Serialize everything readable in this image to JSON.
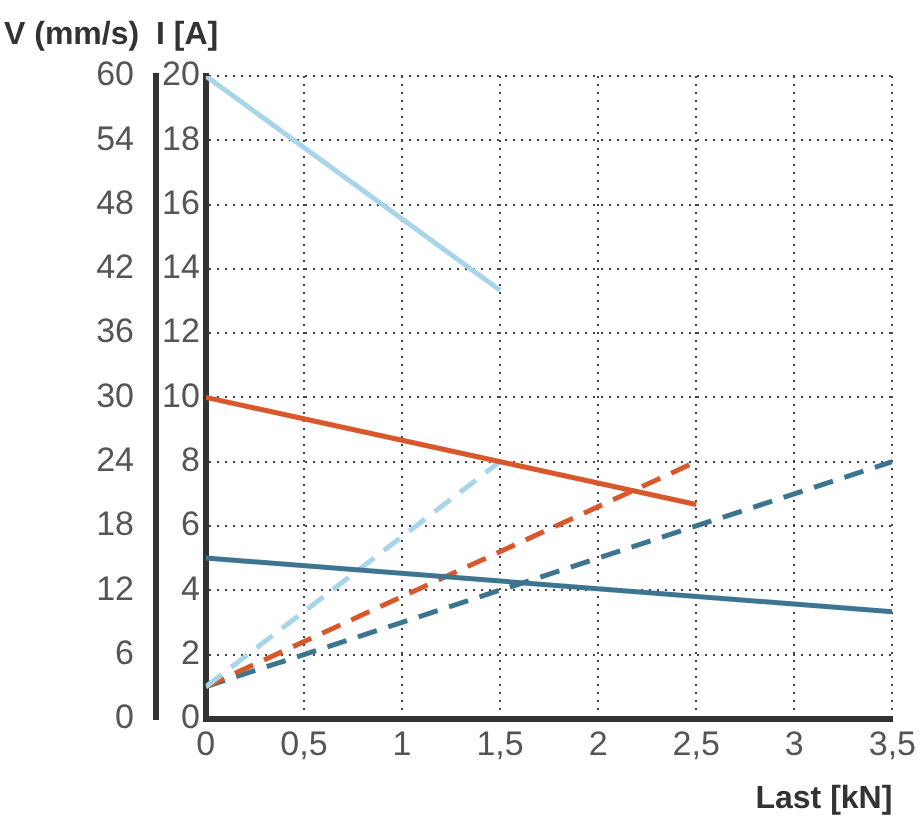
{
  "chart_data": {
    "type": "line",
    "ylabel": "V (mm/s)",
    "y2label": "I [A]",
    "xlabel": "Last [kN]",
    "xlim": [
      0,
      3.5
    ],
    "xticks": [
      0,
      {
        "value": 0.5,
        "label": "0,5"
      },
      1,
      {
        "value": 1.5,
        "label": "1,5"
      },
      2,
      {
        "value": 2.5,
        "label": "2,5"
      },
      3,
      {
        "value": 3.5,
        "label": "3,5"
      }
    ],
    "ylim": [
      0,
      60
    ],
    "yticks": [
      0,
      6,
      12,
      18,
      24,
      30,
      36,
      42,
      48,
      54,
      60
    ],
    "y2lim": [
      0,
      20
    ],
    "y2ticks": [
      0,
      2,
      4,
      6,
      8,
      10,
      12,
      14,
      16,
      18,
      20
    ],
    "grid": true,
    "marker": "none",
    "series": [
      {
        "color": "#a8d5ea",
        "x": [
          0,
          1.5
        ],
        "values": [
          60,
          40
        ],
        "line_style": "solid"
      },
      {
        "color": "#d9582b",
        "x": [
          0,
          2.5
        ],
        "values": [
          30,
          20
        ],
        "line_style": "solid"
      },
      {
        "color": "#3d7590",
        "x": [
          0,
          3.5
        ],
        "values": [
          15,
          10
        ],
        "line_style": "solid"
      },
      {
        "color": "#a8d5ea",
        "x": [
          0,
          1.5
        ],
        "values": [
          1,
          8
        ],
        "line_style": "dashed",
        "axis": "y2"
      },
      {
        "color": "#d9582b",
        "x": [
          0,
          2.5
        ],
        "values": [
          1,
          8
        ],
        "line_style": "dashed",
        "axis": "y2"
      },
      {
        "color": "#3d7590",
        "x": [
          0,
          3.5
        ],
        "values": [
          1,
          8
        ],
        "line_style": "dashed",
        "axis": "y2"
      }
    ]
  }
}
